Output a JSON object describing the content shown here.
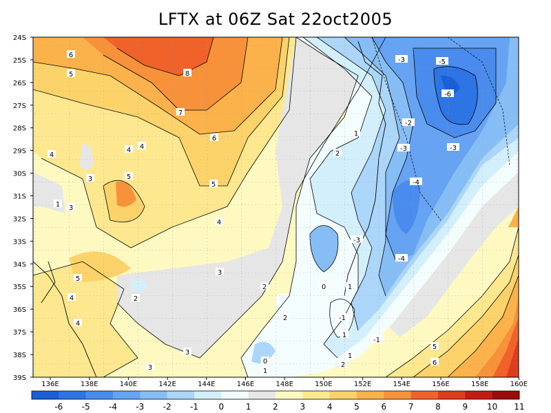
{
  "title": "LFTX at 06Z Sat 22oct2005",
  "latitude_ticks": [
    "24S",
    "25S",
    "26S",
    "27S",
    "28S",
    "29S",
    "30S",
    "31S",
    "32S",
    "33S",
    "34S",
    "35S",
    "36S",
    "37S",
    "38S",
    "39S"
  ],
  "longitude_ticks": [
    "136E",
    "138E",
    "140E",
    "142E",
    "144E",
    "146E",
    "148E",
    "150E",
    "152E",
    "154E",
    "156E",
    "158E",
    "160E"
  ],
  "colorbar": {
    "labels": [
      "-6",
      "-5",
      "-4",
      "-3",
      "-2",
      "-1",
      "0",
      "1",
      "2",
      "3",
      "4",
      "5",
      "6",
      "7",
      "8",
      "9",
      "10",
      "11"
    ],
    "colors": [
      "#1a5fd6",
      "#2d74e4",
      "#4a8ced",
      "#66a3f2",
      "#87bdf5",
      "#abd6f9",
      "#d3effc",
      "#f3fdfd",
      "#e6e6e6",
      "#fdf9c1",
      "#fde890",
      "#fcd36a",
      "#fbb24a",
      "#f7913a",
      "#f0622a",
      "#e03c1e",
      "#c41b14",
      "#9a0d0c"
    ]
  },
  "colors": {
    "ocean_blue": "#4a8ced",
    "land_yellow": "#fdf9c1",
    "hot_orange": "#f7913a"
  },
  "contour_labels": [
    {
      "text": "6"
    },
    {
      "text": "5"
    },
    {
      "text": "8"
    },
    {
      "text": "7"
    },
    {
      "text": "6"
    },
    {
      "text": "4"
    },
    {
      "text": "4"
    },
    {
      "text": "4"
    },
    {
      "text": "3"
    },
    {
      "text": "5"
    },
    {
      "text": "5"
    },
    {
      "text": "-3"
    },
    {
      "text": "3"
    },
    {
      "text": "4"
    },
    {
      "text": "3"
    },
    {
      "text": "5"
    },
    {
      "text": "4"
    },
    {
      "text": "2"
    },
    {
      "text": "4"
    },
    {
      "text": "3"
    },
    {
      "text": "2"
    },
    {
      "text": "2"
    },
    {
      "text": "1"
    },
    {
      "text": "2"
    },
    {
      "text": "1"
    },
    {
      "text": "-3"
    },
    {
      "text": "-5"
    },
    {
      "text": "-6"
    },
    {
      "text": "-2"
    },
    {
      "text": "-3"
    },
    {
      "text": "-4"
    },
    {
      "text": "-4"
    },
    {
      "text": "-3"
    },
    {
      "text": "0"
    },
    {
      "text": "-1"
    },
    {
      "text": "1"
    },
    {
      "text": "1"
    },
    {
      "text": "2"
    },
    {
      "text": "0"
    },
    {
      "text": "1"
    },
    {
      "text": "-1"
    },
    {
      "text": "5"
    },
    {
      "text": "6"
    },
    {
      "text": "1"
    },
    {
      "text": "3"
    }
  ]
}
